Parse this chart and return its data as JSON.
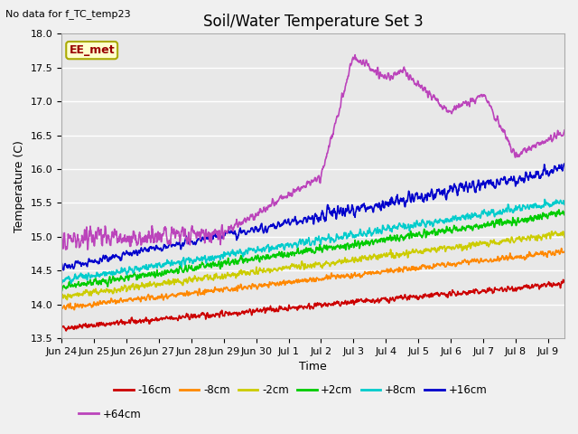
{
  "title": "Soil/Water Temperature Set 3",
  "xlabel": "Time",
  "ylabel": "Temperature (C)",
  "subtitle": "No data for f_TC_temp23",
  "legend_label": "EE_met",
  "ylim": [
    13.5,
    18.0
  ],
  "yticks": [
    13.5,
    14.0,
    14.5,
    15.0,
    15.5,
    16.0,
    16.5,
    17.0,
    17.5,
    18.0
  ],
  "series": {
    "-16cm": {
      "color": "#cc0000",
      "lw": 1.2
    },
    "-8cm": {
      "color": "#ff8800",
      "lw": 1.2
    },
    "-2cm": {
      "color": "#cccc00",
      "lw": 1.2
    },
    "+2cm": {
      "color": "#00cc00",
      "lw": 1.2
    },
    "+8cm": {
      "color": "#00cccc",
      "lw": 1.2
    },
    "+16cm": {
      "color": "#0000cc",
      "lw": 1.2
    },
    "+64cm": {
      "color": "#bb44bb",
      "lw": 1.2
    }
  },
  "duration_days": 15.5,
  "n_points": 1500,
  "background_color": "#f0f0f0",
  "axes_bg": "#e8e8e8",
  "grid_color": "white",
  "title_fontsize": 12,
  "label_fontsize": 9,
  "tick_fontsize": 8,
  "xtick_labels": [
    "Jun 24",
    "Jun 25",
    "Jun 26",
    "Jun 27",
    "Jun 28",
    "Jun 29",
    "Jun 30",
    "Jul 1",
    "Jul 2",
    "Jul 3",
    "Jul 4",
    "Jul 5",
    "Jul 6",
    "Jul 7",
    "Jul 8",
    "Jul 9"
  ]
}
